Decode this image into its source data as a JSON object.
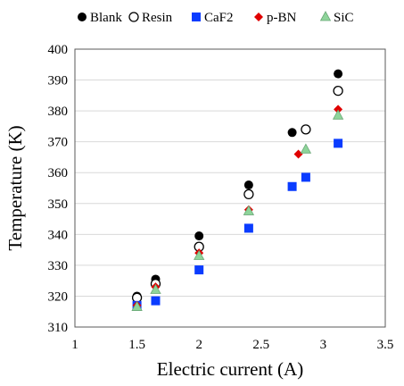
{
  "chart_data": {
    "type": "scatter",
    "title": "",
    "xlabel": "Electric current (A)",
    "ylabel": "Temperature (K)",
    "xlim": [
      1,
      3.5
    ],
    "ylim": [
      310,
      400
    ],
    "x_ticks": [
      "1",
      "1.5",
      "2",
      "2.5",
      "3",
      "3.5"
    ],
    "y_ticks": [
      "310",
      "320",
      "330",
      "340",
      "350",
      "360",
      "370",
      "380",
      "390",
      "400"
    ],
    "grid": "horizontal",
    "legend_position": "top",
    "series": [
      {
        "name": "Blank",
        "marker": "circle-filled",
        "color": "#000000",
        "x": [
          1.5,
          1.65,
          2.0,
          2.4,
          2.75,
          3.12
        ],
        "y": [
          320.0,
          325.5,
          339.5,
          356.0,
          373.0,
          392.0
        ]
      },
      {
        "name": "Resin",
        "marker": "circle-open",
        "color": "#000000",
        "x": [
          1.5,
          1.65,
          2.0,
          2.4,
          2.86,
          3.12
        ],
        "y": [
          319.5,
          324.0,
          336.0,
          353.0,
          374.0,
          386.5
        ]
      },
      {
        "name": "CaF2",
        "marker": "square",
        "color": "#0a3cff",
        "x": [
          1.5,
          1.65,
          2.0,
          2.4,
          2.75,
          2.86,
          3.12
        ],
        "y": [
          317.0,
          318.5,
          328.5,
          342.0,
          355.5,
          358.5,
          369.5
        ]
      },
      {
        "name": "p-BN",
        "marker": "diamond",
        "color": "#e00000",
        "x": [
          1.5,
          1.65,
          2.0,
          2.4,
          2.8,
          3.12
        ],
        "y": [
          317.0,
          323.0,
          334.0,
          348.0,
          366.0,
          380.5
        ]
      },
      {
        "name": "SiC",
        "marker": "triangle",
        "color": "#8ed49a",
        "x": [
          1.5,
          1.65,
          2.0,
          2.4,
          2.86,
          3.12
        ],
        "y": [
          316.5,
          322.0,
          333.0,
          347.5,
          367.5,
          378.5
        ]
      }
    ]
  }
}
